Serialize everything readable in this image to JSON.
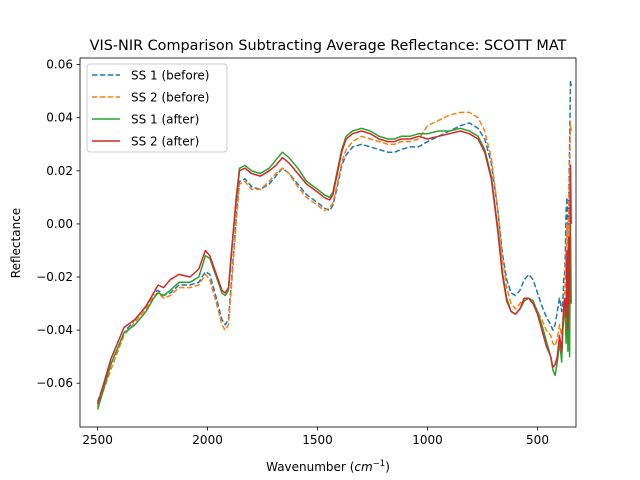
{
  "chart_data": {
    "type": "line",
    "title": "VIS-NIR Comparison Subtracting Average Reflectance: SCOTT MAT",
    "xlabel": "Wavenumber",
    "xlabel_unit_base": "cm",
    "xlabel_unit_exp": "−1",
    "ylabel": "Reflectance",
    "xlim": [
      2580,
      325
    ],
    "ylim": [
      -0.0765,
      0.0625
    ],
    "x_reversed": true,
    "grid": false,
    "legend_position": "top-left",
    "xticks": [
      2500,
      2000,
      1500,
      1000,
      500
    ],
    "xtick_labels": [
      "2500",
      "2000",
      "1500",
      "1000",
      "500"
    ],
    "yticks": [
      -0.06,
      -0.04,
      -0.02,
      0.0,
      0.02,
      0.04,
      0.06
    ],
    "ytick_labels": [
      "−0.06",
      "−0.04",
      "−0.02",
      "0.00",
      "0.02",
      "0.04",
      "0.06"
    ],
    "series": [
      {
        "name": "SS 1 (before)",
        "color": "#1f77b4",
        "dashed": true,
        "x": [
          2500,
          2440,
          2380,
          2330,
          2280,
          2245,
          2225,
          2200,
          2170,
          2130,
          2080,
          2040,
          2010,
          1990,
          1960,
          1935,
          1920,
          1905,
          1890,
          1870,
          1855,
          1830,
          1800,
          1760,
          1720,
          1690,
          1660,
          1630,
          1590,
          1550,
          1500,
          1470,
          1445,
          1430,
          1410,
          1390,
          1370,
          1340,
          1300,
          1260,
          1220,
          1180,
          1150,
          1120,
          1080,
          1040,
          1000,
          950,
          900,
          850,
          810,
          770,
          740,
          710,
          680,
          660,
          640,
          620,
          600,
          580,
          560,
          540,
          520,
          500,
          480,
          460,
          440,
          430,
          420,
          410,
          400,
          395,
          390,
          385,
          380,
          375,
          370,
          366,
          362,
          358,
          354,
          350,
          347
        ],
        "y": [
          -0.067,
          -0.053,
          -0.041,
          -0.036,
          -0.031,
          -0.026,
          -0.025,
          -0.027,
          -0.026,
          -0.023,
          -0.023,
          -0.022,
          -0.018,
          -0.019,
          -0.028,
          -0.036,
          -0.038,
          -0.036,
          -0.02,
          0.002,
          0.016,
          0.017,
          0.014,
          0.013,
          0.015,
          0.018,
          0.021,
          0.019,
          0.015,
          0.011,
          0.008,
          0.006,
          0.005,
          0.007,
          0.014,
          0.022,
          0.026,
          0.029,
          0.03,
          0.029,
          0.028,
          0.027,
          0.027,
          0.028,
          0.029,
          0.029,
          0.031,
          0.033,
          0.035,
          0.037,
          0.038,
          0.036,
          0.032,
          0.023,
          0.005,
          -0.011,
          -0.021,
          -0.026,
          -0.027,
          -0.025,
          -0.021,
          -0.019,
          -0.021,
          -0.026,
          -0.031,
          -0.035,
          -0.038,
          -0.04,
          -0.038,
          -0.033,
          -0.028,
          -0.03,
          -0.033,
          -0.03,
          -0.02,
          -0.018,
          0.005,
          0.01,
          -0.005,
          0.005,
          0.03,
          0.054,
          0.052
        ]
      },
      {
        "name": "SS 2 (before)",
        "color": "#ff7f0e",
        "dashed": true,
        "x": [
          2500,
          2440,
          2380,
          2330,
          2280,
          2245,
          2225,
          2200,
          2170,
          2130,
          2080,
          2040,
          2010,
          1990,
          1960,
          1935,
          1920,
          1905,
          1890,
          1870,
          1855,
          1830,
          1800,
          1760,
          1720,
          1690,
          1660,
          1630,
          1590,
          1550,
          1500,
          1470,
          1445,
          1430,
          1410,
          1390,
          1370,
          1340,
          1300,
          1260,
          1220,
          1180,
          1150,
          1120,
          1080,
          1040,
          1000,
          950,
          900,
          850,
          810,
          770,
          740,
          710,
          680,
          660,
          640,
          620,
          600,
          580,
          560,
          540,
          520,
          500,
          480,
          460,
          440,
          430,
          420,
          410,
          400,
          395,
          390,
          385,
          380,
          375,
          370,
          366,
          362,
          358,
          354,
          350,
          347
        ],
        "y": [
          -0.069,
          -0.055,
          -0.042,
          -0.037,
          -0.032,
          -0.027,
          -0.026,
          -0.028,
          -0.027,
          -0.024,
          -0.024,
          -0.023,
          -0.019,
          -0.021,
          -0.03,
          -0.038,
          -0.04,
          -0.038,
          -0.022,
          0.001,
          0.015,
          0.016,
          0.013,
          0.013,
          0.016,
          0.019,
          0.021,
          0.019,
          0.014,
          0.01,
          0.007,
          0.005,
          0.006,
          0.008,
          0.015,
          0.023,
          0.028,
          0.031,
          0.033,
          0.032,
          0.031,
          0.03,
          0.03,
          0.031,
          0.031,
          0.032,
          0.037,
          0.039,
          0.041,
          0.042,
          0.042,
          0.04,
          0.035,
          0.025,
          0.005,
          -0.013,
          -0.024,
          -0.03,
          -0.032,
          -0.03,
          -0.028,
          -0.028,
          -0.03,
          -0.033,
          -0.036,
          -0.04,
          -0.042,
          -0.045,
          -0.046,
          -0.043,
          -0.038,
          -0.04,
          -0.042,
          -0.038,
          -0.03,
          -0.025,
          -0.01,
          0.0,
          -0.01,
          0.005,
          0.02,
          0.038,
          0.035
        ]
      },
      {
        "name": "SS 1 (after)",
        "color": "#2ca02c",
        "dashed": false,
        "x": [
          2500,
          2440,
          2380,
          2330,
          2280,
          2245,
          2225,
          2200,
          2170,
          2130,
          2080,
          2040,
          2010,
          1990,
          1960,
          1935,
          1920,
          1905,
          1890,
          1870,
          1855,
          1830,
          1800,
          1760,
          1720,
          1690,
          1660,
          1630,
          1590,
          1550,
          1500,
          1470,
          1445,
          1430,
          1410,
          1390,
          1370,
          1340,
          1300,
          1260,
          1220,
          1180,
          1150,
          1120,
          1080,
          1040,
          1000,
          950,
          900,
          850,
          810,
          770,
          740,
          710,
          680,
          660,
          640,
          620,
          600,
          580,
          560,
          540,
          520,
          500,
          480,
          460,
          440,
          430,
          420,
          410,
          400,
          395,
          390,
          385,
          380,
          375,
          370,
          366,
          362,
          358,
          354,
          350,
          347
        ],
        "y": [
          -0.07,
          -0.053,
          -0.041,
          -0.038,
          -0.033,
          -0.028,
          -0.026,
          -0.027,
          -0.025,
          -0.022,
          -0.022,
          -0.02,
          -0.012,
          -0.013,
          -0.02,
          -0.026,
          -0.027,
          -0.025,
          -0.01,
          0.01,
          0.021,
          0.022,
          0.02,
          0.019,
          0.021,
          0.024,
          0.027,
          0.025,
          0.021,
          0.016,
          0.013,
          0.011,
          0.01,
          0.012,
          0.02,
          0.028,
          0.033,
          0.035,
          0.036,
          0.035,
          0.033,
          0.032,
          0.032,
          0.033,
          0.033,
          0.034,
          0.034,
          0.035,
          0.035,
          0.036,
          0.035,
          0.033,
          0.028,
          0.018,
          -0.002,
          -0.018,
          -0.028,
          -0.033,
          -0.034,
          -0.032,
          -0.029,
          -0.028,
          -0.029,
          -0.033,
          -0.038,
          -0.044,
          -0.05,
          -0.055,
          -0.057,
          -0.052,
          -0.045,
          -0.048,
          -0.052,
          -0.04,
          -0.035,
          -0.03,
          -0.045,
          -0.02,
          -0.048,
          -0.02,
          -0.05,
          0.0,
          -0.03
        ]
      },
      {
        "name": "SS 2 (after)",
        "color": "#d62728",
        "dashed": false,
        "x": [
          2500,
          2440,
          2380,
          2330,
          2280,
          2245,
          2225,
          2200,
          2170,
          2130,
          2080,
          2040,
          2010,
          1990,
          1960,
          1935,
          1920,
          1905,
          1890,
          1870,
          1855,
          1830,
          1800,
          1760,
          1720,
          1690,
          1660,
          1630,
          1590,
          1550,
          1500,
          1470,
          1445,
          1430,
          1410,
          1390,
          1370,
          1340,
          1300,
          1260,
          1220,
          1180,
          1150,
          1120,
          1080,
          1040,
          1000,
          950,
          900,
          850,
          810,
          770,
          740,
          710,
          680,
          660,
          640,
          620,
          600,
          580,
          560,
          540,
          520,
          500,
          480,
          460,
          440,
          430,
          420,
          410,
          400,
          395,
          390,
          385,
          380,
          375,
          370,
          366,
          362,
          358,
          354,
          350,
          347
        ],
        "y": [
          -0.068,
          -0.051,
          -0.039,
          -0.036,
          -0.031,
          -0.026,
          -0.023,
          -0.024,
          -0.021,
          -0.019,
          -0.02,
          -0.017,
          -0.01,
          -0.012,
          -0.019,
          -0.025,
          -0.026,
          -0.024,
          -0.009,
          0.009,
          0.02,
          0.021,
          0.019,
          0.018,
          0.02,
          0.022,
          0.025,
          0.023,
          0.019,
          0.015,
          0.012,
          0.01,
          0.009,
          0.011,
          0.019,
          0.027,
          0.032,
          0.034,
          0.035,
          0.034,
          0.032,
          0.031,
          0.031,
          0.032,
          0.032,
          0.033,
          0.032,
          0.033,
          0.034,
          0.035,
          0.034,
          0.032,
          0.027,
          0.017,
          -0.003,
          -0.019,
          -0.029,
          -0.033,
          -0.034,
          -0.032,
          -0.028,
          -0.028,
          -0.03,
          -0.034,
          -0.04,
          -0.046,
          -0.05,
          -0.054,
          -0.053,
          -0.05,
          -0.042,
          -0.045,
          -0.048,
          -0.038,
          -0.03,
          -0.028,
          -0.035,
          -0.01,
          -0.04,
          -0.005,
          -0.03,
          0.022,
          0.0
        ]
      }
    ]
  }
}
